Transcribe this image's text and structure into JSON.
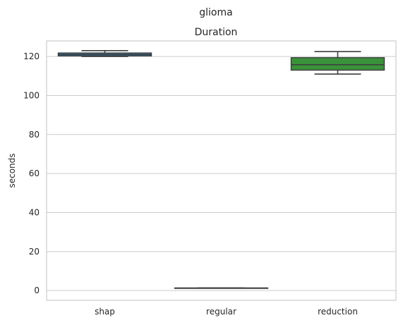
{
  "chart_data": {
    "type": "box",
    "suptitle": "glioma",
    "title": "Duration",
    "xlabel": "",
    "ylabel": "seconds",
    "ylim": [
      -5,
      128
    ],
    "yticks": [
      0,
      20,
      40,
      60,
      80,
      100,
      120
    ],
    "grid": true,
    "categories": [
      "shap",
      "regular",
      "reduction"
    ],
    "boxes": [
      {
        "label": "shap",
        "whislo": 120.0,
        "q1": 120.3,
        "med": 121.0,
        "q3": 121.8,
        "whishi": 123.0,
        "color": "#3274a1"
      },
      {
        "label": "regular",
        "whislo": 1.3,
        "q1": 1.3,
        "med": 1.3,
        "q3": 1.3,
        "whishi": 1.3,
        "color": "#e1812c"
      },
      {
        "label": "reduction",
        "whislo": 111.0,
        "q1": 113.0,
        "med": 115.8,
        "q3": 119.4,
        "whishi": 122.5,
        "color": "#3a923a"
      }
    ]
  }
}
